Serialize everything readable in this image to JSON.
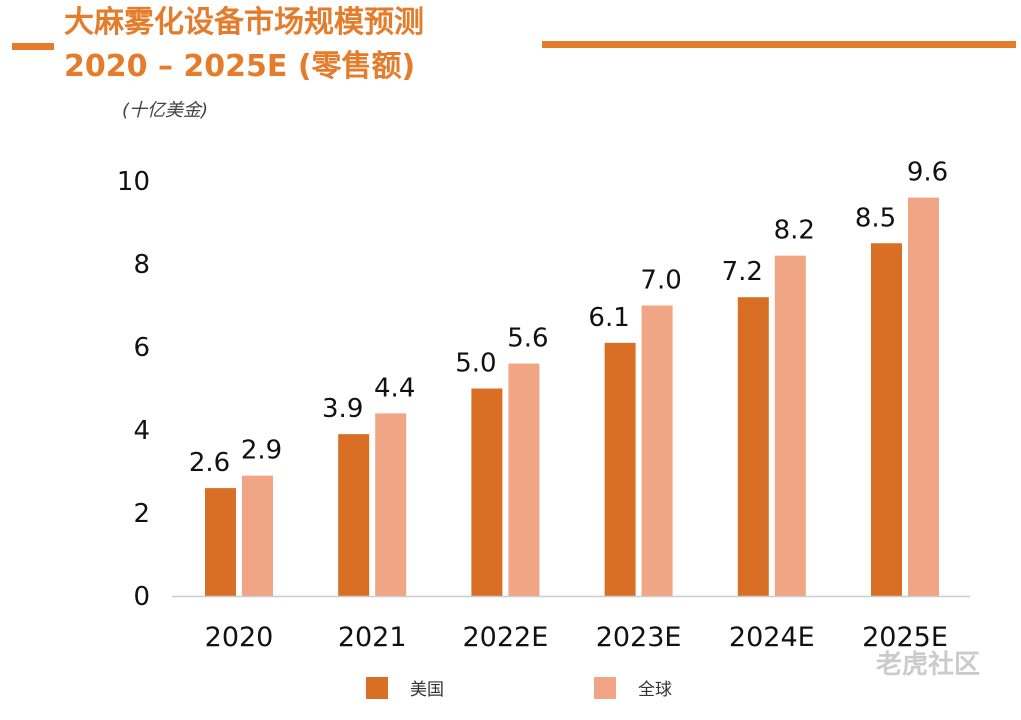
{
  "title_line1": "大麻雾化设备市场规模预测",
  "title_line2": "2020 – 2025E (零售额)",
  "unit": "(十亿美金)",
  "watermark": "老虎社区",
  "colors": {
    "accent": "#E57C2C",
    "us": "#D96F25",
    "global": "#F0A585"
  },
  "chart_data": {
    "type": "bar",
    "title": "大麻雾化设备市场规模预测 2020 – 2025E (零售额)",
    "ylabel": "(十亿美金)",
    "xlabel": "",
    "categories": [
      "2020",
      "2021",
      "2022E",
      "2023E",
      "2024E",
      "2025E"
    ],
    "yticks": [
      "0",
      "2",
      "4",
      "6",
      "8",
      "10"
    ],
    "ylim": [
      0,
      10
    ],
    "grid": false,
    "legend_position": "bottom",
    "series": [
      {
        "name": "美国",
        "values": [
          2.6,
          3.9,
          5.0,
          6.1,
          7.2,
          8.5
        ],
        "labels": [
          "2.6",
          "3.9",
          "5.0",
          "6.1",
          "7.2",
          "8.5"
        ]
      },
      {
        "name": "全球",
        "values": [
          2.9,
          4.4,
          5.6,
          7.0,
          8.2,
          9.6
        ],
        "labels": [
          "2.9",
          "4.4",
          "5.6",
          "7.0",
          "8.2",
          "9.6"
        ]
      }
    ]
  }
}
